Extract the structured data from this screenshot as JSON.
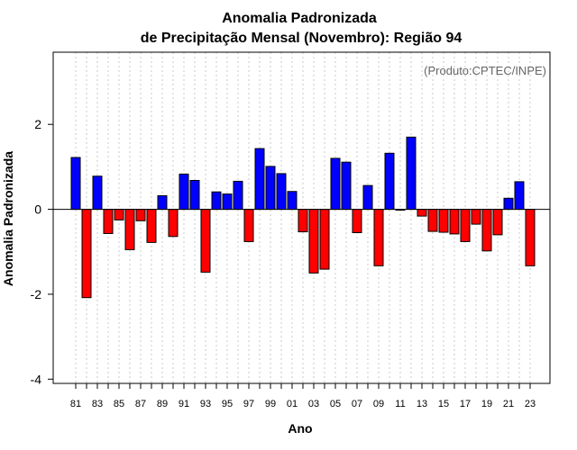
{
  "chart_data": {
    "type": "bar",
    "title": "Anomalia Padronizada",
    "subtitle": "de Precipitação Mensal (Novembro): Região 94",
    "xlabel": "Ano",
    "ylabel": "Anomalia Padronizada",
    "credit": "(Produto:CPTEC/INPE)",
    "ylim": [
      -4.1,
      3.7
    ],
    "yticks": [
      -4,
      -2,
      0,
      2
    ],
    "ytick_labels": [
      "-4",
      "-2",
      "0",
      "2"
    ],
    "grid": true,
    "years": [
      "81",
      "82",
      "83",
      "84",
      "85",
      "86",
      "87",
      "88",
      "89",
      "90",
      "91",
      "92",
      "93",
      "94",
      "95",
      "96",
      "97",
      "98",
      "99",
      "00",
      "01",
      "02",
      "03",
      "04",
      "05",
      "06",
      "07",
      "08",
      "09",
      "10",
      "11",
      "12",
      "13",
      "14",
      "15",
      "16",
      "17",
      "18",
      "19",
      "20",
      "21",
      "22",
      "23"
    ],
    "xtick_labels": [
      "81",
      "",
      "83",
      "",
      "85",
      "",
      "87",
      "",
      "89",
      "",
      "91",
      "",
      "93",
      "",
      "95",
      "",
      "97",
      "",
      "99",
      "",
      "01",
      "",
      "03",
      "",
      "05",
      "",
      "07",
      "",
      "09",
      "",
      "11",
      "",
      "13",
      "",
      "15",
      "",
      "17",
      "",
      "19",
      "",
      "21",
      "",
      "23"
    ],
    "values": [
      1.22,
      -2.08,
      0.78,
      -0.57,
      -0.25,
      -0.95,
      -0.27,
      -0.78,
      0.32,
      -0.64,
      0.83,
      0.68,
      -1.48,
      0.41,
      0.36,
      0.66,
      -0.76,
      1.43,
      1.01,
      0.84,
      0.42,
      -0.53,
      -1.5,
      -1.41,
      1.2,
      1.11,
      -0.55,
      0.56,
      -1.33,
      1.32,
      -0.02,
      1.7,
      -0.16,
      -0.52,
      -0.54,
      -0.58,
      -0.76,
      -0.35,
      -0.98,
      -0.6,
      0.26,
      0.65,
      -1.33
    ],
    "positive_color": "#0000ff",
    "negative_color": "#ff0000"
  }
}
